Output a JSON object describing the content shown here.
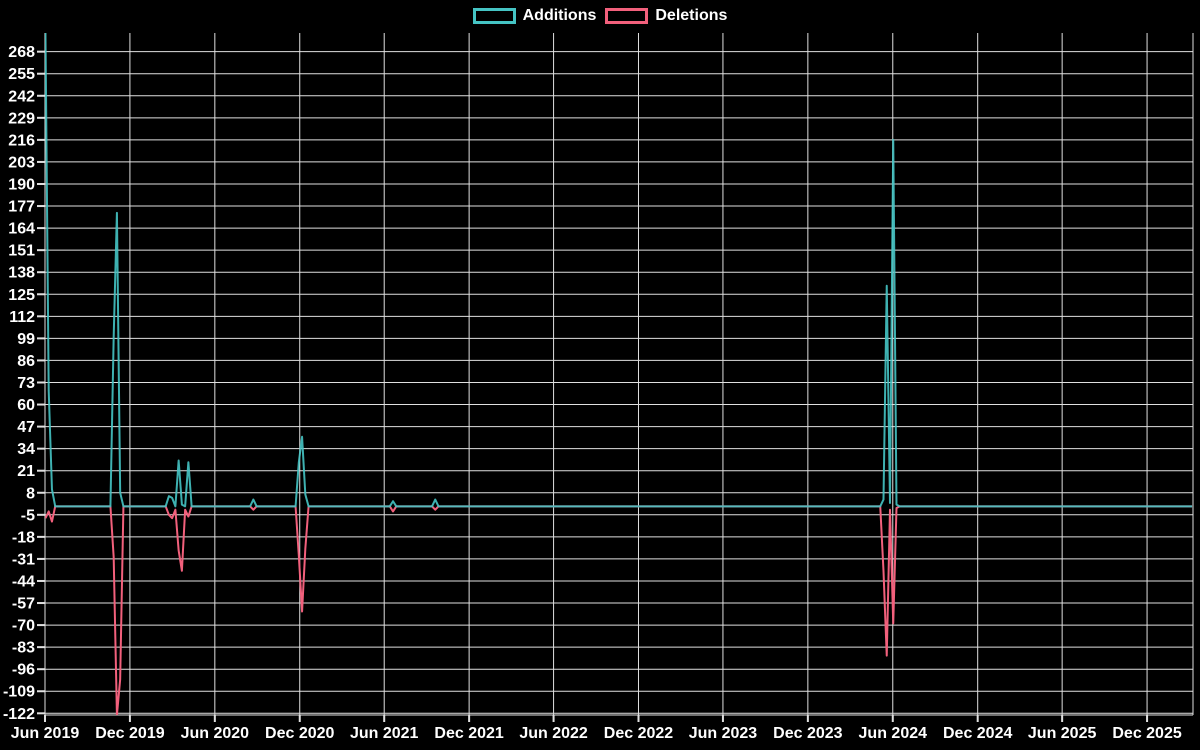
{
  "legend": {
    "items": [
      {
        "label": "Additions",
        "color": "#45c4c4"
      },
      {
        "label": "Deletions",
        "color": "#f2607c"
      }
    ]
  },
  "colors": {
    "background": "#000000",
    "grid": "#e0e0e0",
    "text": "#ffffff",
    "additions": "#45c4c4",
    "deletions": "#f2607c"
  },
  "chart_data": {
    "type": "line",
    "title": "",
    "xlabel": "",
    "ylabel": "",
    "grid": true,
    "legend_position": "top-center",
    "x_axis": {
      "start": "2019-06-01",
      "end": "2026-03-10",
      "tick_dates": [
        "2019-06-01",
        "2019-12-01",
        "2020-06-01",
        "2020-12-01",
        "2021-06-01",
        "2021-12-01",
        "2022-06-01",
        "2022-12-01",
        "2023-06-01",
        "2023-12-01",
        "2024-06-01",
        "2024-12-01",
        "2025-06-01",
        "2025-12-01"
      ],
      "tick_labels": [
        "Jun 2019",
        "Dec 2019",
        "Jun 2020",
        "Dec 2020",
        "Jun 2021",
        "Dec 2021",
        "Jun 2022",
        "Dec 2022",
        "Jun 2023",
        "Dec 2023",
        "Jun 2024",
        "Dec 2024",
        "Jun 2025",
        "Dec 2025"
      ]
    },
    "y_axis": {
      "min": -123,
      "max": 279,
      "tick_step": 13,
      "ticks": [
        268,
        255,
        242,
        229,
        216,
        203,
        190,
        177,
        164,
        151,
        138,
        125,
        112,
        99,
        86,
        73,
        60,
        47,
        34,
        21,
        8,
        -5,
        -18,
        -31,
        -44,
        -57,
        -70,
        -83,
        -96,
        -109,
        -122
      ]
    },
    "series": [
      {
        "name": "Additions",
        "color": "#45c4c4",
        "points": [
          [
            "2019-06-02",
            279
          ],
          [
            "2019-06-09",
            68
          ],
          [
            "2019-06-16",
            10
          ],
          [
            "2019-06-23",
            0
          ],
          [
            "2019-10-20",
            0
          ],
          [
            "2019-10-27",
            100
          ],
          [
            "2019-11-03",
            173
          ],
          [
            "2019-11-10",
            8
          ],
          [
            "2019-11-17",
            0
          ],
          [
            "2020-02-16",
            0
          ],
          [
            "2020-02-23",
            6
          ],
          [
            "2020-03-01",
            5
          ],
          [
            "2020-03-08",
            0
          ],
          [
            "2020-03-15",
            27
          ],
          [
            "2020-03-22",
            1
          ],
          [
            "2020-03-29",
            0
          ],
          [
            "2020-04-05",
            26
          ],
          [
            "2020-04-12",
            0
          ],
          [
            "2020-08-16",
            0
          ],
          [
            "2020-08-23",
            4
          ],
          [
            "2020-08-30",
            0
          ],
          [
            "2020-11-22",
            0
          ],
          [
            "2020-11-29",
            26
          ],
          [
            "2020-12-06",
            41
          ],
          [
            "2020-12-13",
            7
          ],
          [
            "2020-12-20",
            0
          ],
          [
            "2021-06-13",
            0
          ],
          [
            "2021-06-20",
            3
          ],
          [
            "2021-06-27",
            0
          ],
          [
            "2021-09-12",
            0
          ],
          [
            "2021-09-19",
            4
          ],
          [
            "2021-09-26",
            0
          ],
          [
            "2024-05-05",
            0
          ],
          [
            "2024-05-12",
            4
          ],
          [
            "2024-05-19",
            130
          ],
          [
            "2024-05-26",
            2
          ],
          [
            "2024-06-02",
            216
          ],
          [
            "2024-06-09",
            1
          ],
          [
            "2024-06-16",
            0
          ],
          [
            "2026-03-08",
            0
          ]
        ]
      },
      {
        "name": "Deletions",
        "color": "#f2607c",
        "points": [
          [
            "2019-06-02",
            -7
          ],
          [
            "2019-06-09",
            -3
          ],
          [
            "2019-06-16",
            -9
          ],
          [
            "2019-06-23",
            0
          ],
          [
            "2019-10-20",
            0
          ],
          [
            "2019-10-27",
            -30
          ],
          [
            "2019-11-03",
            -123
          ],
          [
            "2019-11-10",
            -102
          ],
          [
            "2019-11-17",
            0
          ],
          [
            "2020-02-16",
            0
          ],
          [
            "2020-02-23",
            -5
          ],
          [
            "2020-03-01",
            -7
          ],
          [
            "2020-03-08",
            -2
          ],
          [
            "2020-03-15",
            -26
          ],
          [
            "2020-03-22",
            -38
          ],
          [
            "2020-03-29",
            -2
          ],
          [
            "2020-04-05",
            -6
          ],
          [
            "2020-04-12",
            0
          ],
          [
            "2020-08-16",
            0
          ],
          [
            "2020-08-23",
            -2
          ],
          [
            "2020-08-30",
            0
          ],
          [
            "2020-11-22",
            0
          ],
          [
            "2020-11-29",
            -29
          ],
          [
            "2020-12-06",
            -62
          ],
          [
            "2020-12-13",
            -25
          ],
          [
            "2020-12-20",
            0
          ],
          [
            "2021-06-13",
            0
          ],
          [
            "2021-06-20",
            -3
          ],
          [
            "2021-06-27",
            0
          ],
          [
            "2021-09-12",
            0
          ],
          [
            "2021-09-19",
            -2
          ],
          [
            "2021-09-26",
            0
          ],
          [
            "2024-05-05",
            0
          ],
          [
            "2024-05-12",
            -38
          ],
          [
            "2024-05-19",
            -88
          ],
          [
            "2024-05-26",
            -2
          ],
          [
            "2024-06-02",
            -69
          ],
          [
            "2024-06-09",
            -1
          ],
          [
            "2024-06-16",
            0
          ],
          [
            "2026-03-08",
            0
          ]
        ]
      }
    ]
  }
}
